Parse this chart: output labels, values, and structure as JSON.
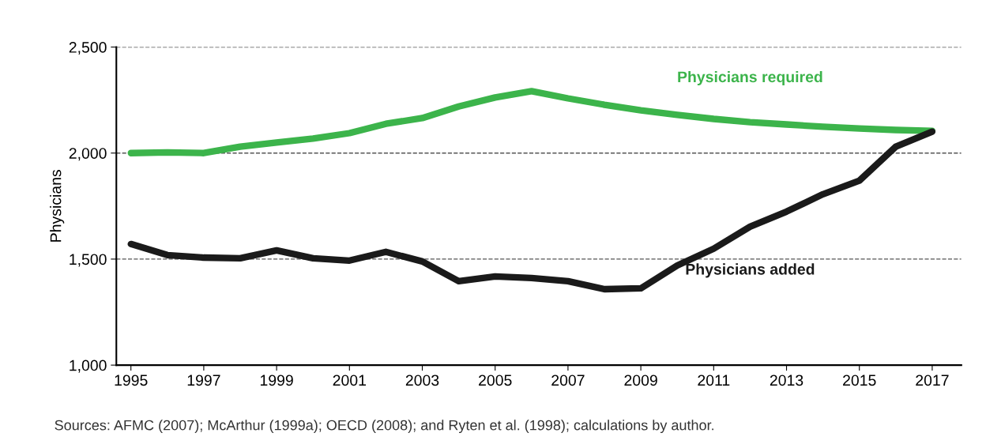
{
  "chart_data": {
    "type": "line",
    "ylabel": "Physicians",
    "x": [
      1995,
      1996,
      1997,
      1998,
      1999,
      2000,
      2001,
      2002,
      2003,
      2004,
      2005,
      2006,
      2007,
      2008,
      2009,
      2010,
      2011,
      2012,
      2013,
      2014,
      2015,
      2016,
      2017
    ],
    "series": [
      {
        "name": "Physicians required",
        "color": "#3cb44b",
        "values": [
          2000,
          2003,
          2000,
          2030,
          2050,
          2068,
          2094,
          2138,
          2165,
          2220,
          2262,
          2292,
          2258,
          2228,
          2202,
          2180,
          2161,
          2146,
          2135,
          2124,
          2116,
          2109,
          2105
        ]
      },
      {
        "name": "Physicians added",
        "color": "#1a1a1a",
        "values": [
          1571,
          1519,
          1507,
          1504,
          1541,
          1504,
          1493,
          1534,
          1489,
          1396,
          1418,
          1411,
          1396,
          1358,
          1362,
          1470,
          1549,
          1653,
          1724,
          1806,
          1870,
          2030,
          2101
        ]
      }
    ],
    "xlim": [
      1994.6,
      2017.8
    ],
    "xticks": [
      1995,
      1997,
      1999,
      2001,
      2003,
      2005,
      2007,
      2009,
      2011,
      2013,
      2015,
      2017
    ],
    "ylim": [
      1000,
      2500
    ],
    "yticks": [
      {
        "value": 1000,
        "label": "1,000"
      },
      {
        "value": 1500,
        "label": "1,500"
      },
      {
        "value": 2000,
        "label": "2,000"
      },
      {
        "value": 2500,
        "label": "2,500"
      }
    ],
    "grid": "y",
    "legend": false,
    "marker": "none",
    "line_style": "solid",
    "annotations": [
      "Sources: AFMC (2007); McArthur (1999a); OECD (2008); and Ryten et al. (1998); calculations by author."
    ]
  }
}
